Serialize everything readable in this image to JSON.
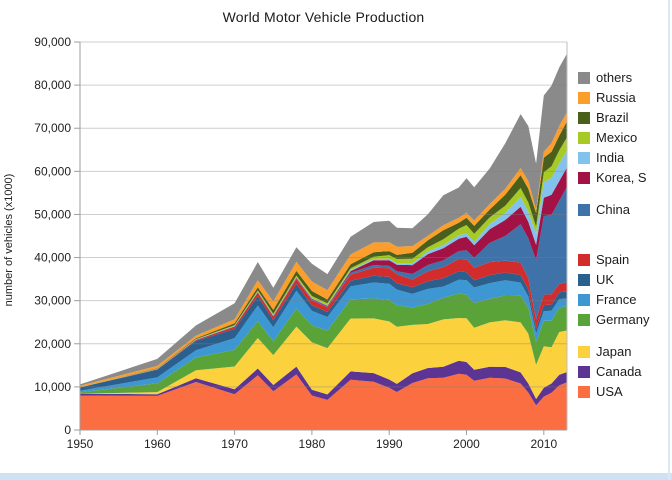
{
  "chart": {
    "title": "World Motor Vehicle Production",
    "ylabel": "number of vehicles (x1000)",
    "y_ticks": [
      "0",
      "10,000",
      "20,000",
      "30,000",
      "40,000",
      "50,000",
      "60,000",
      "70,000",
      "80,000",
      "90,000"
    ],
    "x_ticks": [
      "1950",
      "1960",
      "1970",
      "1980",
      "1990",
      "2000",
      "2010"
    ]
  },
  "colors": {
    "grid": "rgba(125,125,125,0.38)",
    "axis": "#9e9e9e",
    "plot_border": "#bdbdbd",
    "tick_text": "#1f1f1f",
    "page_edge": "#cfe2f4"
  },
  "legend": {
    "groups": [
      [
        "others",
        "Russia",
        "Brazil",
        "Mexico",
        "India",
        "Korea, S"
      ],
      [
        "China"
      ],
      [
        "Spain",
        "UK",
        "France",
        "Germany"
      ],
      [
        "Japan",
        "Canada",
        "USA"
      ]
    ],
    "group_gaps": [
      12,
      30,
      12,
      0
    ]
  },
  "chart_data": {
    "type": "area",
    "stacked": true,
    "title": "World Motor Vehicle Production",
    "xlabel": "",
    "ylabel": "number of vehicles (x1000)",
    "ylim": [
      0,
      90000
    ],
    "xlim": [
      1950,
      2013
    ],
    "grid": true,
    "legend_position": "right",
    "x": [
      1950,
      1960,
      1965,
      1970,
      1973,
      1975,
      1978,
      1980,
      1982,
      1985,
      1988,
      1990,
      1991,
      1993,
      1995,
      1997,
      1999,
      2000,
      2001,
      2003,
      2005,
      2007,
      2008,
      2009,
      2010,
      2011,
      2012,
      2013
    ],
    "series": [
      {
        "name": "USA",
        "color": "#fa6e42",
        "values": [
          8006,
          7905,
          11138,
          8284,
          12682,
          8987,
          12899,
          8010,
          6986,
          11653,
          11214,
          9783,
          8811,
          10898,
          11985,
          12119,
          13025,
          12800,
          11425,
          12115,
          11947,
          10781,
          8694,
          5709,
          7743,
          8662,
          10336,
          11066
        ]
      },
      {
        "name": "Canada",
        "color": "#5b3494",
        "values": [
          388,
          398,
          847,
          1160,
          1575,
          1442,
          1818,
          1324,
          1276,
          1933,
          1977,
          1928,
          1888,
          2246,
          2408,
          2571,
          3059,
          2962,
          2533,
          2553,
          2688,
          2578,
          2082,
          1490,
          2068,
          2135,
          2463,
          2380
        ]
      },
      {
        "name": "Japan",
        "color": "#fcd13e",
        "values": [
          32,
          482,
          1876,
          5289,
          7083,
          6942,
          9269,
          11043,
          10732,
          12271,
          12700,
          13487,
          13245,
          11228,
          10196,
          10975,
          9895,
          10141,
          9777,
          10286,
          10800,
          11596,
          11576,
          7934,
          9629,
          8399,
          9943,
          9630
        ]
      },
      {
        "name": "Germany",
        "color": "#5aa338",
        "values": [
          306,
          2055,
          2976,
          3842,
          3949,
          3186,
          4186,
          3879,
          4063,
          4446,
          4625,
          4977,
          5014,
          4032,
          4667,
          5023,
          5687,
          5527,
          5692,
          5507,
          5758,
          6213,
          6046,
          5210,
          5906,
          6147,
          5649,
          5718
        ]
      },
      {
        "name": "France",
        "color": "#3d97d3",
        "values": [
          357,
          1369,
          1642,
          2750,
          3596,
          3287,
          4112,
          3378,
          3149,
          3016,
          3698,
          3769,
          3611,
          3156,
          3475,
          2581,
          3180,
          3348,
          3628,
          3620,
          3549,
          3016,
          2569,
          2048,
          2228,
          2295,
          1968,
          1740
        ]
      },
      {
        "name": "UK",
        "color": "#2b5f8e",
        "values": [
          784,
          1811,
          2177,
          2098,
          2164,
          1648,
          1607,
          1313,
          1157,
          1314,
          1545,
          1566,
          1454,
          1569,
          1765,
          1936,
          1973,
          1814,
          1685,
          1846,
          1803,
          1750,
          1650,
          1090,
          1393,
          1464,
          1577,
          1598
        ]
      },
      {
        "name": "Spain",
        "color": "#d22c2c",
        "values": [
          3,
          58,
          229,
          536,
          822,
          814,
          1144,
          1182,
          1070,
          1418,
          1866,
          2053,
          2082,
          1768,
          2334,
          2562,
          2852,
          3033,
          2850,
          3030,
          2753,
          2890,
          2542,
          2170,
          2388,
          2373,
          1979,
          2163
        ]
      },
      {
        "name": "China",
        "color": "#3e72a9",
        "values": [
          0,
          23,
          41,
          87,
          116,
          140,
          149,
          222,
          196,
          437,
          647,
          509,
          709,
          1297,
          1453,
          1580,
          1830,
          2069,
          2334,
          4444,
          5708,
          8883,
          9299,
          13791,
          18265,
          18419,
          19272,
          22117
        ]
      },
      {
        "name": "Korea, S",
        "color": "#a31245",
        "values": [
          0,
          0,
          0,
          29,
          26,
          37,
          159,
          123,
          163,
          378,
          1084,
          1322,
          1498,
          2050,
          2526,
          2818,
          2843,
          3115,
          2946,
          3178,
          3699,
          4086,
          3827,
          3513,
          4272,
          4657,
          4562,
          4521
        ]
      },
      {
        "name": "India",
        "color": "#84c2ee",
        "values": [
          15,
          55,
          70,
          76,
          85,
          91,
          103,
          113,
          150,
          235,
          310,
          364,
          357,
          410,
          636,
          720,
          818,
          801,
          815,
          1161,
          1639,
          2254,
          2332,
          2642,
          3557,
          3927,
          4145,
          3898
        ]
      },
      {
        "name": "Mexico",
        "color": "#a8ca25",
        "values": [
          22,
          50,
          97,
          193,
          286,
          361,
          384,
          490,
          473,
          398,
          513,
          821,
          989,
          1080,
          935,
          1360,
          1550,
          1936,
          1841,
          1575,
          1684,
          2095,
          2168,
          1561,
          2342,
          2681,
          3002,
          3055
        ]
      },
      {
        "name": "Brazil",
        "color": "#4b5f1d",
        "values": [
          0,
          133,
          185,
          416,
          750,
          930,
          1064,
          1165,
          859,
          967,
          1069,
          915,
          960,
          1391,
          1629,
          2070,
          1350,
          1682,
          1817,
          1827,
          2531,
          2977,
          3216,
          3183,
          3382,
          3406,
          3403,
          3712
        ]
      },
      {
        "name": "Russia",
        "color": "#fb9e2b",
        "values": [
          363,
          524,
          616,
          916,
          1602,
          1964,
          2151,
          2199,
          2173,
          2232,
          2263,
          2040,
          1925,
          1540,
          1030,
          1186,
          1170,
          1206,
          1251,
          1279,
          1355,
          1660,
          1790,
          725,
          1403,
          1990,
          2233,
          2175
        ]
      },
      {
        "name": "others",
        "color": "#8a8a8a",
        "values": [
          301,
          1625,
          2378,
          3743,
          4238,
          3169,
          3335,
          4124,
          3706,
          4113,
          4728,
          5020,
          4385,
          4120,
          5007,
          6933,
          7026,
          7940,
          7710,
          8242,
          10568,
          12487,
          12729,
          10696,
          13008,
          13326,
          13609,
          13527
        ]
      }
    ]
  }
}
